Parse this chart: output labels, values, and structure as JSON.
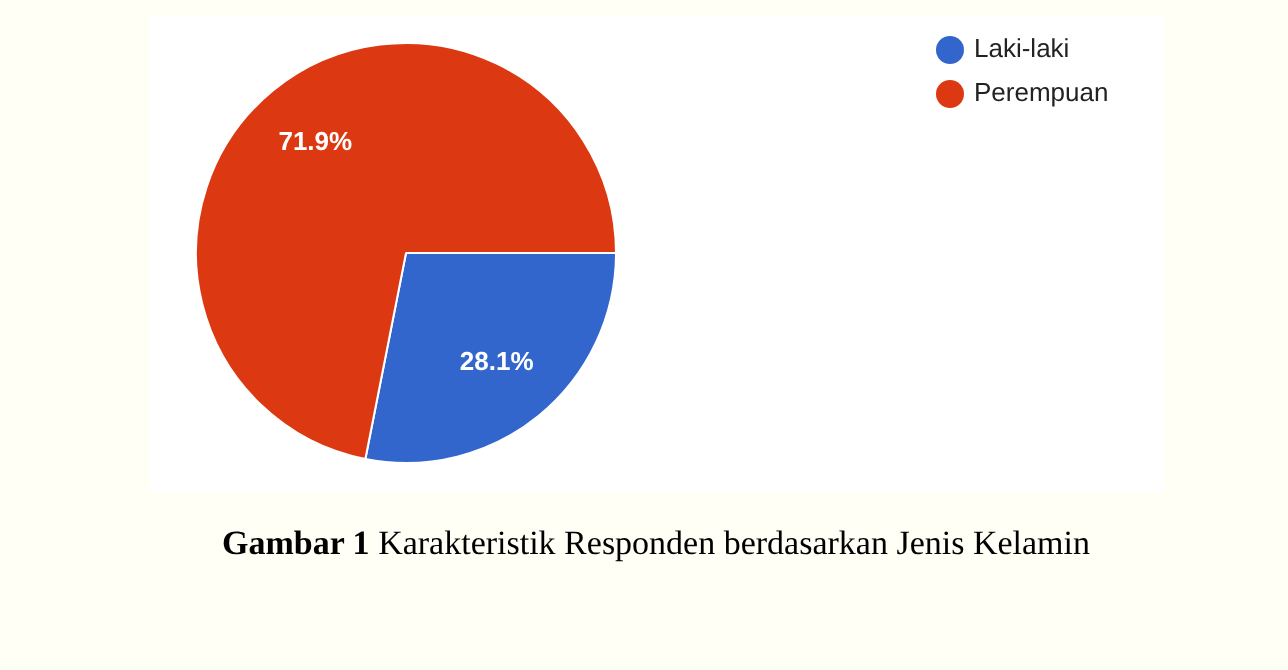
{
  "chart_data": {
    "type": "pie",
    "categories": [
      "Laki-laki",
      "Perempuan"
    ],
    "values": [
      28.1,
      71.9
    ],
    "colors": [
      "#3366cc",
      "#dc3912"
    ],
    "value_labels": [
      "28.1%",
      "71.9%"
    ],
    "legend": "top right",
    "annotations": [
      "Gambar 1 Karakteristik Responden berdasarkan Jenis Kelamin"
    ]
  }
}
